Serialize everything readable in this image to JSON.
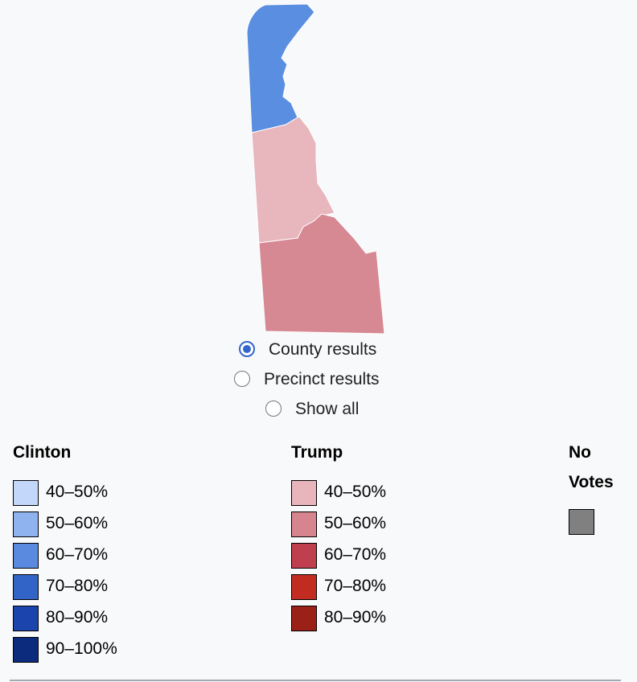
{
  "radio_options": [
    {
      "label": "County results",
      "checked": true
    },
    {
      "label": "Precinct results",
      "checked": false
    },
    {
      "label": "Show all",
      "checked": false
    }
  ],
  "legend": [
    {
      "title": "Clinton",
      "items": [
        {
          "label": "40–50%",
          "color": "#c3d7fb"
        },
        {
          "label": "50–60%",
          "color": "#8fb3ee"
        },
        {
          "label": "60–70%",
          "color": "#5a8ae0"
        },
        {
          "label": "70–80%",
          "color": "#3263c7"
        },
        {
          "label": "80–90%",
          "color": "#1c44ad"
        },
        {
          "label": "90–100%",
          "color": "#0d2b7c"
        }
      ]
    },
    {
      "title": "Trump",
      "items": [
        {
          "label": "40–50%",
          "color": "#e8b5bc"
        },
        {
          "label": "50–60%",
          "color": "#d6858f"
        },
        {
          "label": "60–70%",
          "color": "#c03f4f"
        },
        {
          "label": "70–80%",
          "color": "#c12b20"
        },
        {
          "label": "80–90%",
          "color": "#9b2018"
        }
      ]
    },
    {
      "title": "No Votes",
      "items": [
        {
          "color": "#808080"
        }
      ]
    }
  ]
}
